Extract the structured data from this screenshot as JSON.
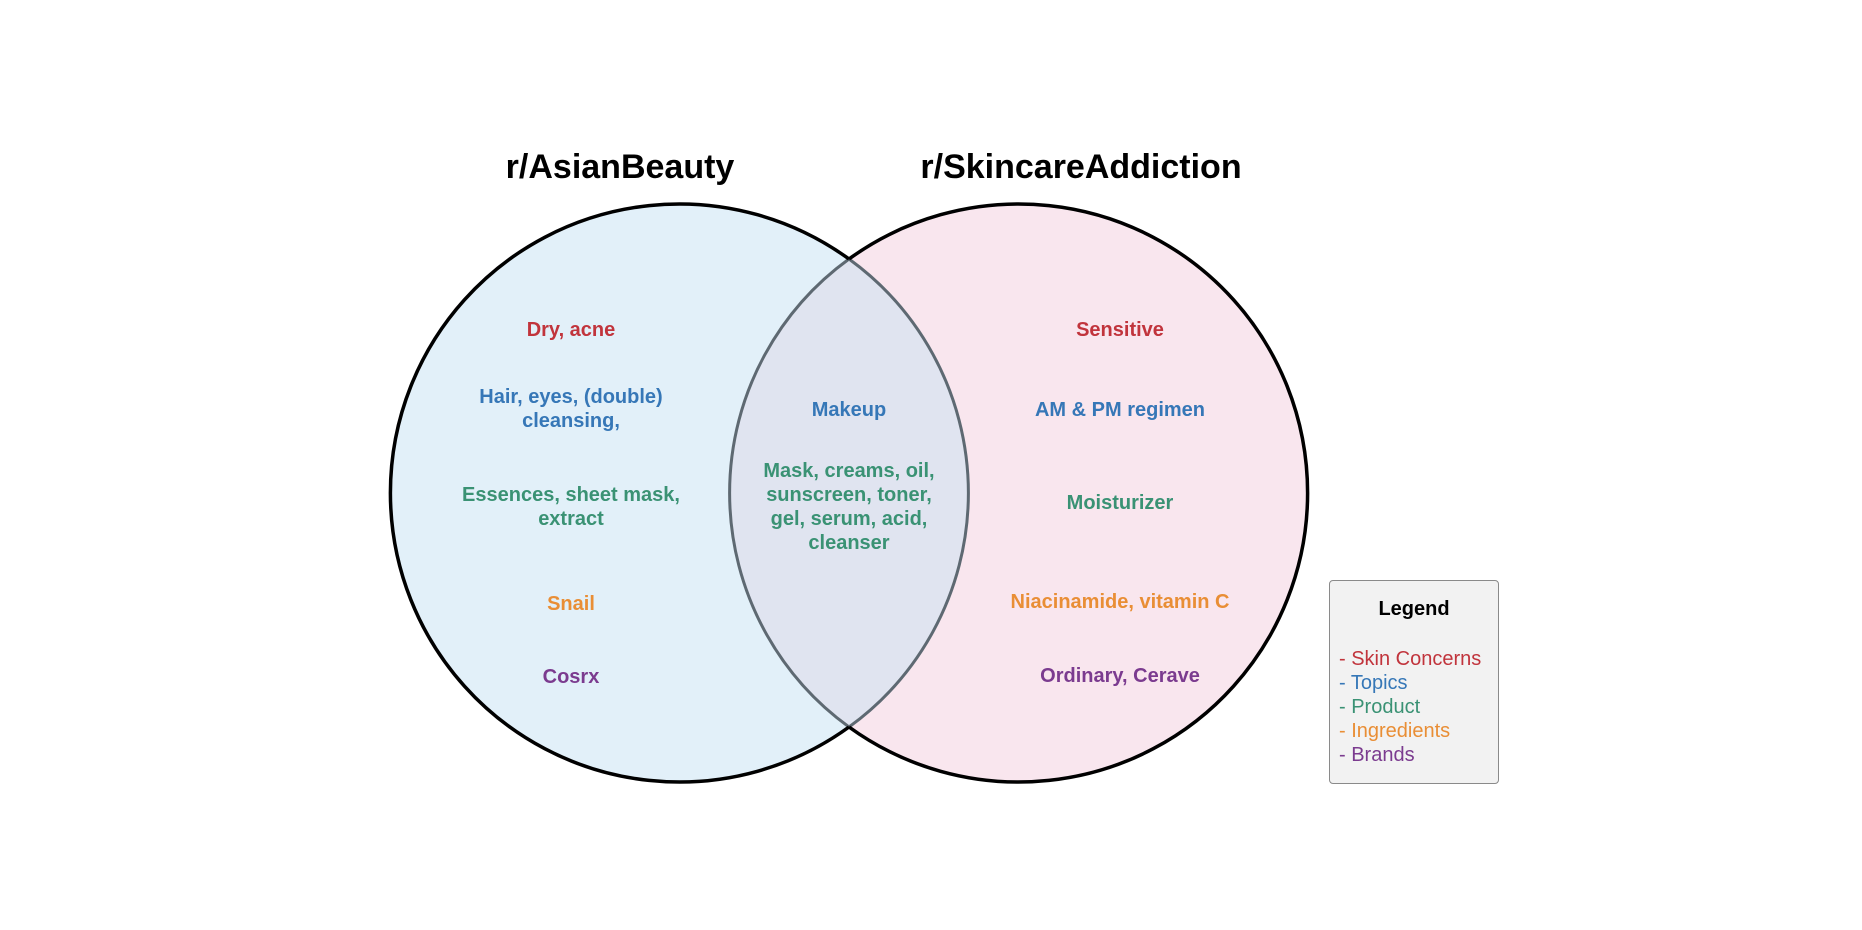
{
  "sets": {
    "left": {
      "title": "r/AsianBeauty"
    },
    "right": {
      "title": "r/SkincareAddiction"
    }
  },
  "colors": {
    "skin_concerns": "#c1343c",
    "topics": "#3677b7",
    "product": "#3a9274",
    "ingredients": "#e98e35",
    "brands": "#7b3b8f",
    "left_fill": "#e2f0f9",
    "right_fill": "#f9e6ee",
    "overlap_fill": "#e0e4f0"
  },
  "left_only": {
    "skin_concerns": "Dry, acne",
    "topics": "Hair, eyes, (double) cleansing,",
    "product": "Essences, sheet mask, extract",
    "ingredients": "Snail",
    "brands": "Cosrx"
  },
  "overlap": {
    "topics": "Makeup",
    "product": "Mask, creams, oil, sunscreen, toner, gel, serum, acid, cleanser"
  },
  "right_only": {
    "skin_concerns": "Sensitive",
    "topics": "AM & PM regimen",
    "product": "Moisturizer",
    "ingredients": "Niacinamide, vitamin C",
    "brands": "Ordinary, Cerave"
  },
  "legend": {
    "title": "Legend",
    "items": [
      {
        "label": "Skin Concerns",
        "category": "skin_concerns"
      },
      {
        "label": "Topics",
        "category": "topics"
      },
      {
        "label": "Product",
        "category": "product"
      },
      {
        "label": "Ingredients",
        "category": "ingredients"
      },
      {
        "label": "Brands",
        "category": "brands"
      }
    ]
  }
}
